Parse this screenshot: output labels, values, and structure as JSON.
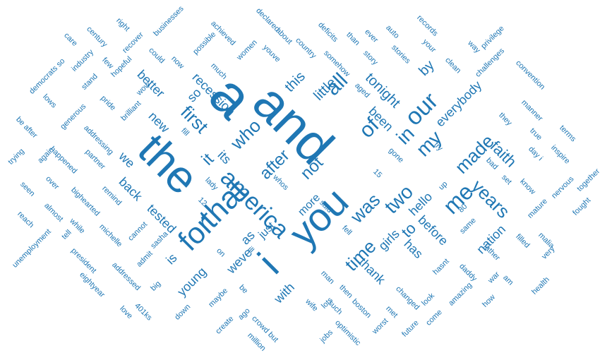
{
  "style": {
    "word_color": "#1f77b4",
    "background": "#ffffff"
  },
  "words": [
    "a",
    "and",
    "the",
    "you",
    "i",
    "that",
    "for",
    "america",
    "our",
    "all",
    "in",
    "of",
    "my",
    "me",
    "it",
    "first",
    "two",
    "who",
    "after",
    "not",
    "was",
    "time",
    "years",
    "made",
    "faith",
    "to",
    "this",
    "little",
    "tonight",
    "by",
    "been",
    "everybody",
    "recession",
    "so",
    "its",
    "better",
    "new",
    "we",
    "back",
    "tested",
    "is",
    "young",
    "weve",
    "as",
    "just",
    "more",
    "girls",
    "hello",
    "thank",
    "with",
    "has",
    "before",
    "nation",
    "up",
    "80",
    "same",
    "fell",
    "said",
    "15",
    "gone",
    "try",
    "whos",
    "lady",
    "12",
    "ill",
    "on",
    "maybe",
    "be",
    "down",
    "sasha",
    "admit",
    "big",
    "cannot",
    "michelle",
    "remind",
    "addressed",
    "president",
    "love",
    "401ks",
    "tell",
    "while",
    "bighearted",
    "eightyear",
    "unemployment",
    "reach",
    "almost",
    "seen",
    "over",
    "again",
    "happened",
    "trying",
    "partner",
    "addressing",
    "brilliant",
    "wow",
    "pride",
    "generous",
    "stand",
    "be after",
    "lows",
    "democrats so",
    "industry",
    "hopeful",
    "few",
    "could",
    "now",
    "possible",
    "care",
    "century",
    "recover",
    "right",
    "businesses",
    "achieved",
    "declared",
    "women",
    "much",
    "youve",
    "about",
    "country",
    "deficits",
    "somehow",
    "than",
    "ever",
    "story",
    "auto",
    "stories",
    "records",
    "your",
    "clean",
    "way",
    "privilege",
    "challenges",
    "convention",
    "aged",
    "manner",
    "they",
    "true",
    "terms",
    "day i",
    "inspire",
    "bad",
    "set",
    "know",
    "nervous",
    "together",
    "fought",
    "mature",
    "malia",
    "very",
    "filled",
    "father",
    "daddy",
    "war",
    "am",
    "health",
    "how",
    "amazing",
    "hasnt",
    "look",
    "changed",
    "come",
    "future",
    "met",
    "worst",
    "boston",
    "such",
    "then",
    "lots",
    "optimistic",
    "jobs",
    "wife",
    "man",
    "crowd but",
    "million",
    "ago",
    "create",
    "fill"
  ]
}
